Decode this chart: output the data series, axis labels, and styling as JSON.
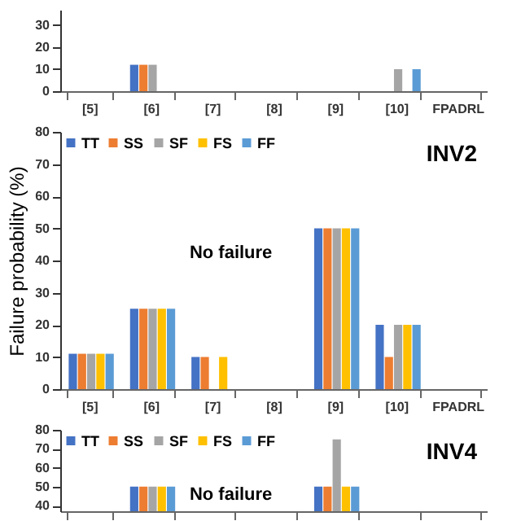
{
  "chart_data": [
    {
      "type": "bar",
      "categories": [
        "[5]",
        "[6]",
        "[7]",
        "[8]",
        "[9]",
        "[10]",
        "FPADRL"
      ],
      "ylim": [
        0,
        37
      ],
      "yticks": [
        0,
        10,
        20,
        30
      ],
      "legend": false,
      "series": [
        {
          "color": "#4472c4",
          "values": [
            0,
            12,
            0,
            0,
            null,
            0,
            0
          ]
        },
        {
          "color": "#ed7d31",
          "values": [
            0,
            12,
            0,
            0,
            null,
            0,
            0
          ]
        },
        {
          "color": "#a5a5a5",
          "values": [
            0,
            12,
            0,
            0,
            null,
            10,
            0
          ]
        },
        {
          "color": "#ffc000",
          "values": [
            0,
            0,
            0,
            0,
            null,
            0,
            0
          ]
        },
        {
          "color": "#5b9bd5",
          "values": [
            0,
            0,
            0,
            0,
            null,
            10,
            0
          ]
        }
      ]
    },
    {
      "type": "bar",
      "title": "INV2",
      "categories": [
        "[5]",
        "[6]",
        "[7]",
        "[8]",
        "[9]",
        "[10]",
        "FPADRL"
      ],
      "ylabel": "Failure probability (%)",
      "ylim": [
        0,
        80
      ],
      "yticks": [
        0,
        10,
        20,
        30,
        40,
        50,
        60,
        70,
        80
      ],
      "legend": "top left",
      "annotations": [
        "No failure"
      ],
      "series": [
        {
          "name": "TT",
          "color": "#4472c4",
          "values": [
            11,
            25,
            10,
            0,
            50,
            20,
            0
          ]
        },
        {
          "name": "SS",
          "color": "#ed7d31",
          "values": [
            11,
            25,
            10,
            0,
            50,
            10,
            0
          ]
        },
        {
          "name": "SF",
          "color": "#a5a5a5",
          "values": [
            11,
            25,
            0,
            0,
            50,
            20,
            0
          ]
        },
        {
          "name": "FS",
          "color": "#ffc000",
          "values": [
            11,
            25,
            10,
            0,
            50,
            20,
            0
          ]
        },
        {
          "name": "FF",
          "color": "#5b9bd5",
          "values": [
            11,
            25,
            0,
            0,
            50,
            20,
            0
          ]
        }
      ]
    },
    {
      "type": "bar",
      "title": "INV4",
      "categories": [
        null,
        null,
        null,
        null,
        null,
        null,
        null
      ],
      "ylim": [
        37,
        80
      ],
      "yticks": [
        40,
        50,
        60,
        70,
        80
      ],
      "legend": "top left",
      "tick_labels": "y",
      "annotations": [
        "No failure"
      ],
      "series": [
        {
          "name": "TT",
          "color": "#4472c4",
          "values": [
            null,
            50,
            null,
            null,
            50,
            null,
            null
          ]
        },
        {
          "name": "SS",
          "color": "#ed7d31",
          "values": [
            null,
            50,
            null,
            null,
            50,
            null,
            null
          ]
        },
        {
          "name": "SF",
          "color": "#a5a5a5",
          "values": [
            null,
            50,
            null,
            null,
            75,
            null,
            null
          ]
        },
        {
          "name": "FS",
          "color": "#ffc000",
          "values": [
            null,
            50,
            null,
            null,
            50,
            null,
            null
          ]
        },
        {
          "name": "FF",
          "color": "#5b9bd5",
          "values": [
            null,
            50,
            null,
            null,
            50,
            null,
            null
          ]
        }
      ]
    }
  ]
}
